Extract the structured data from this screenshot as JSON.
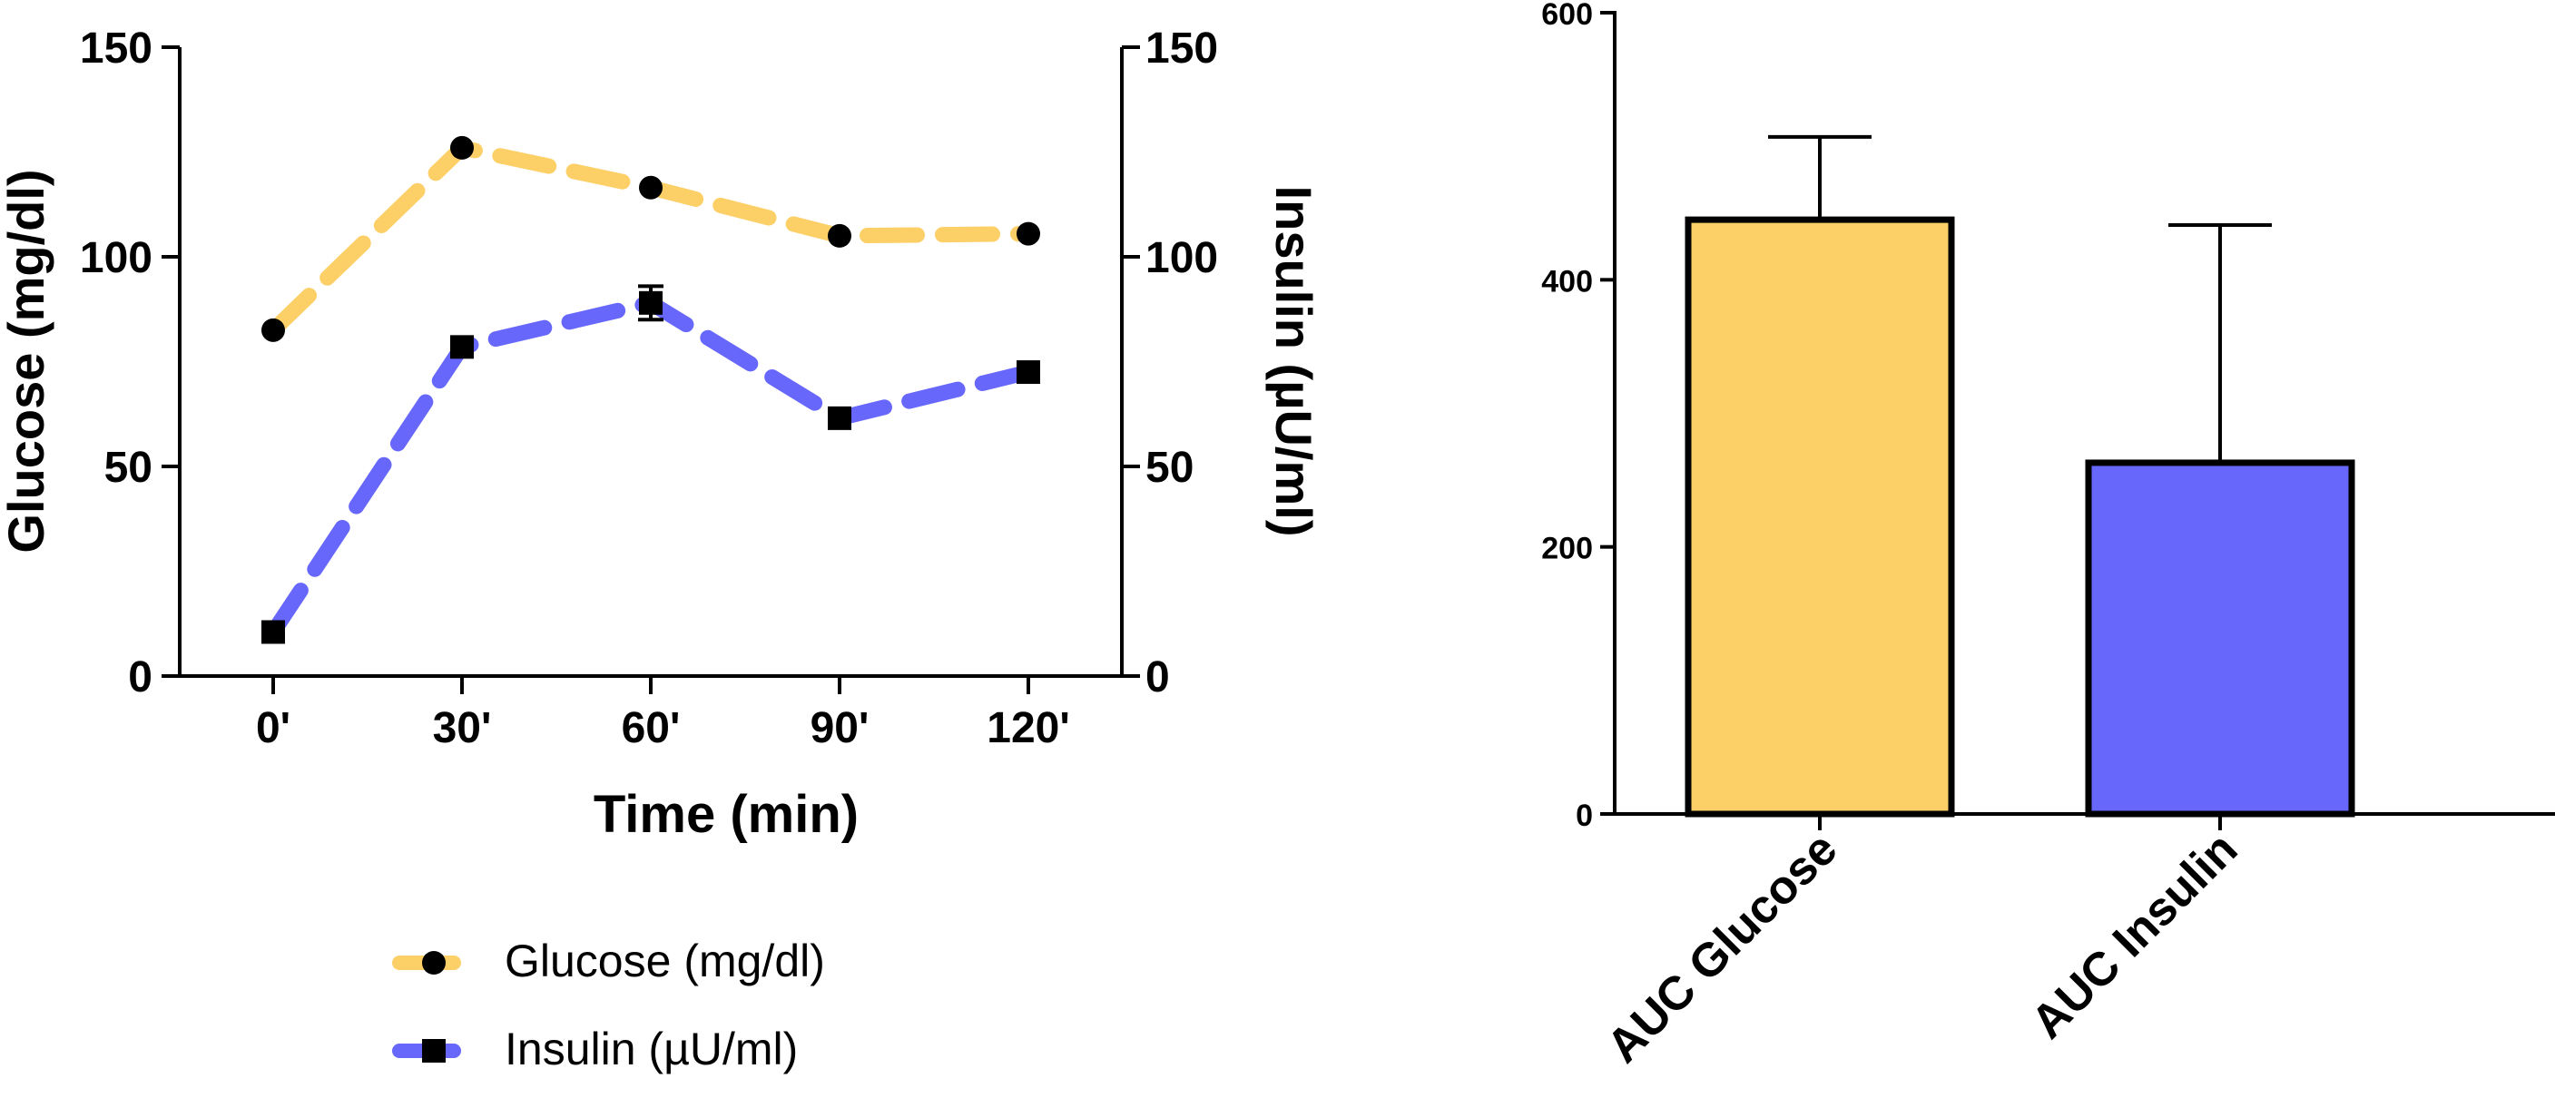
{
  "chart_data": [
    {
      "type": "line",
      "categories": [
        "0'",
        "30'",
        "60'",
        "90'",
        "120'"
      ],
      "xlabel": "Time (min)",
      "ylabel": "Glucose  (mg/dl)",
      "y2label": "Insulin (µU/ml)",
      "ylim": [
        0,
        150
      ],
      "y2lim": [
        0,
        150
      ],
      "yticks": [
        "0",
        "50",
        "100",
        "150"
      ],
      "y2ticks": [
        "0",
        "50",
        "100",
        "150"
      ],
      "legend_position": "bottom",
      "series": [
        {
          "name": "Glucose (mg/dl)",
          "axis": "left",
          "color": "#FCCF67",
          "marker": "circle",
          "values": [
            82.5,
            126,
            116.5,
            105,
            105.5
          ],
          "errors": [
            0,
            0,
            0,
            0,
            0
          ]
        },
        {
          "name": "Insulin (µU/ml)",
          "axis": "right",
          "color": "#6767FB",
          "marker": "square",
          "values": [
            10.5,
            78.5,
            89,
            61.5,
            72.5
          ],
          "errors": [
            0,
            0,
            4,
            0,
            0
          ]
        }
      ]
    },
    {
      "type": "bar",
      "categories": [
        "AUC Glucose",
        "AUC Insulin"
      ],
      "values": [
        445,
        263
      ],
      "errors": [
        62,
        178
      ],
      "colors": [
        "#FCCF67",
        "#6767FB"
      ],
      "ylim": [
        0,
        600
      ],
      "yticks": [
        "0",
        "200",
        "400",
        "600"
      ]
    }
  ]
}
